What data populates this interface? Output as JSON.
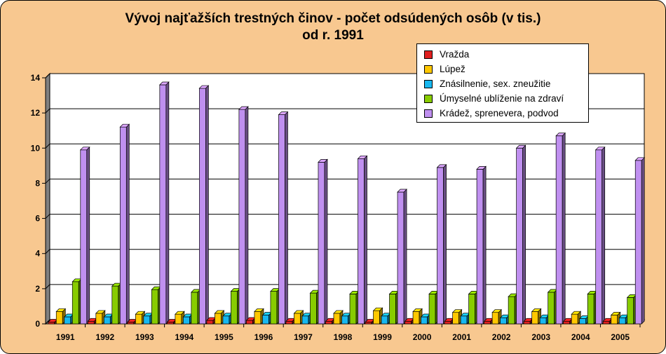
{
  "chart_data": {
    "type": "bar",
    "title_line1": "Vývoj najťažších trestných činov - počet odsúdených osôb (v tis.)",
    "title_line2": "od r. 1991",
    "categories": [
      "1991",
      "1992",
      "1993",
      "1994",
      "1995",
      "1996",
      "1997",
      "1998",
      "1999",
      "2000",
      "2001",
      "2002",
      "2003",
      "2004",
      "2005"
    ],
    "ylim": [
      0,
      14
    ],
    "yticks": [
      "0",
      "2",
      "4",
      "6",
      "8",
      "10",
      "12",
      "14"
    ],
    "grid": true,
    "legend_position": "top-right",
    "series": [
      {
        "name": "Vražda",
        "color": "#e02020",
        "values": [
          0.1,
          0.15,
          0.1,
          0.1,
          0.2,
          0.2,
          0.15,
          0.15,
          0.1,
          0.15,
          0.15,
          0.15,
          0.15,
          0.15,
          0.15
        ]
      },
      {
        "name": "Lúpež",
        "color": "#ffc800",
        "values": [
          0.7,
          0.6,
          0.55,
          0.55,
          0.6,
          0.7,
          0.6,
          0.6,
          0.75,
          0.7,
          0.65,
          0.65,
          0.7,
          0.55,
          0.5
        ]
      },
      {
        "name": "Znásilnenie, sex. zneužitie",
        "color": "#18b8f0",
        "values": [
          0.4,
          0.4,
          0.45,
          0.4,
          0.45,
          0.5,
          0.45,
          0.45,
          0.45,
          0.4,
          0.45,
          0.35,
          0.35,
          0.3,
          0.35
        ]
      },
      {
        "name": "Úmyselné ublíženie na zdraví",
        "color": "#88cc00",
        "values": [
          2.4,
          2.15,
          1.95,
          1.8,
          1.85,
          1.85,
          1.75,
          1.7,
          1.7,
          1.7,
          1.7,
          1.55,
          1.8,
          1.7,
          1.5
        ]
      },
      {
        "name": "Krádež, sprenevera, podvod",
        "color": "#c090f0",
        "values": [
          9.9,
          11.2,
          13.6,
          13.4,
          12.2,
          11.9,
          9.2,
          9.4,
          7.5,
          8.9,
          8.8,
          10.0,
          10.7,
          9.9,
          9.3
        ]
      }
    ]
  }
}
